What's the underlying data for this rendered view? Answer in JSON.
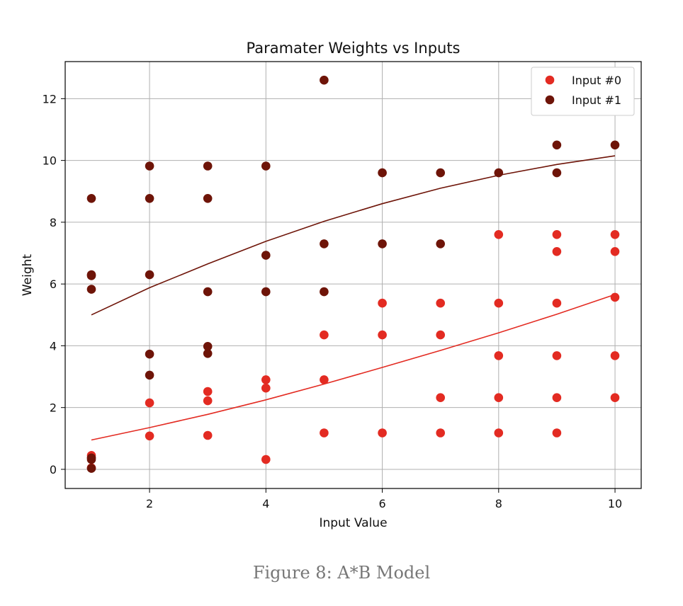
{
  "caption": "Figure 8: A*B Model",
  "chart_data": {
    "type": "scatter",
    "title": "Paramater Weights vs Inputs",
    "xlabel": "Input Value",
    "ylabel": "Weight",
    "xlim": [
      0.55,
      10.45
    ],
    "ylim": [
      -0.62,
      13.2
    ],
    "x_ticks": [
      2,
      4,
      6,
      8,
      10
    ],
    "y_ticks": [
      0,
      2,
      4,
      6,
      8,
      10,
      12
    ],
    "grid": true,
    "legend_position": "top-right",
    "series": [
      {
        "name": "Input #0",
        "color": "#e32b22",
        "points": [
          [
            1,
            0.45
          ],
          [
            1,
            0.38
          ],
          [
            1,
            0.05
          ],
          [
            2,
            2.15
          ],
          [
            2,
            1.08
          ],
          [
            3,
            2.52
          ],
          [
            3,
            2.22
          ],
          [
            3,
            1.1
          ],
          [
            4,
            2.9
          ],
          [
            4,
            2.63
          ],
          [
            4,
            0.32
          ],
          [
            5,
            4.35
          ],
          [
            5,
            2.9
          ],
          [
            5,
            1.18
          ],
          [
            6,
            5.38
          ],
          [
            6,
            4.35
          ],
          [
            6,
            1.18
          ],
          [
            7,
            5.38
          ],
          [
            7,
            4.35
          ],
          [
            7,
            2.32
          ],
          [
            7,
            1.18
          ],
          [
            8,
            7.6
          ],
          [
            8,
            5.38
          ],
          [
            8,
            3.68
          ],
          [
            8,
            2.32
          ],
          [
            8,
            1.18
          ],
          [
            9,
            7.6
          ],
          [
            9,
            7.05
          ],
          [
            9,
            5.38
          ],
          [
            9,
            3.68
          ],
          [
            9,
            2.32
          ],
          [
            9,
            1.18
          ],
          [
            10,
            7.6
          ],
          [
            10,
            7.05
          ],
          [
            10,
            5.57
          ],
          [
            10,
            3.68
          ],
          [
            10,
            2.32
          ]
        ],
        "fit_line": [
          [
            1,
            0.95
          ],
          [
            2,
            1.35
          ],
          [
            3,
            1.78
          ],
          [
            4,
            2.25
          ],
          [
            5,
            2.76
          ],
          [
            6,
            3.3
          ],
          [
            7,
            3.85
          ],
          [
            8,
            4.42
          ],
          [
            9,
            5.02
          ],
          [
            10,
            5.66
          ]
        ]
      },
      {
        "name": "Input #1",
        "color": "#6e1408",
        "points": [
          [
            1,
            8.77
          ],
          [
            1,
            6.3
          ],
          [
            1,
            6.27
          ],
          [
            1,
            5.83
          ],
          [
            1,
            0.37
          ],
          [
            1,
            0.32
          ],
          [
            1,
            0.03
          ],
          [
            2,
            9.82
          ],
          [
            2,
            8.77
          ],
          [
            2,
            6.3
          ],
          [
            2,
            3.73
          ],
          [
            2,
            3.05
          ],
          [
            3,
            9.82
          ],
          [
            3,
            8.77
          ],
          [
            3,
            5.75
          ],
          [
            3,
            3.98
          ],
          [
            3,
            3.75
          ],
          [
            4,
            9.82
          ],
          [
            4,
            6.93
          ],
          [
            4,
            5.75
          ],
          [
            5,
            12.6
          ],
          [
            5,
            7.3
          ],
          [
            5,
            5.75
          ],
          [
            6,
            9.6
          ],
          [
            6,
            7.3
          ],
          [
            7,
            9.6
          ],
          [
            7,
            7.3
          ],
          [
            8,
            9.6
          ],
          [
            9,
            10.5
          ],
          [
            9,
            9.6
          ],
          [
            10,
            10.5
          ]
        ],
        "fit_line": [
          [
            1,
            5.0
          ],
          [
            2,
            5.88
          ],
          [
            3,
            6.65
          ],
          [
            4,
            7.38
          ],
          [
            5,
            8.03
          ],
          [
            6,
            8.6
          ],
          [
            7,
            9.1
          ],
          [
            8,
            9.52
          ],
          [
            9,
            9.87
          ],
          [
            10,
            10.15
          ]
        ]
      }
    ]
  }
}
